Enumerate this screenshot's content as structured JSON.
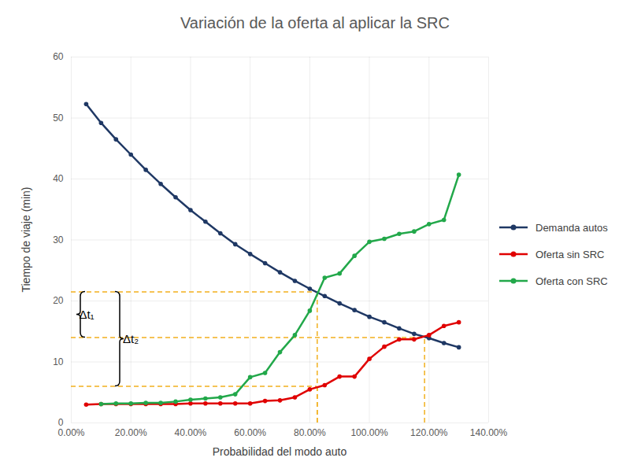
{
  "chart_data": {
    "type": "line",
    "title": "Variación de la oferta al aplicar la SRC",
    "x_label": "Probabilidad del modo auto",
    "y_label": "Tiempo de viaje (min)",
    "x": [
      5,
      10,
      15,
      20,
      25,
      30,
      35,
      40,
      45,
      50,
      55,
      60,
      65,
      70,
      75,
      80,
      85,
      90,
      95,
      100,
      105,
      110,
      115,
      120,
      125,
      130
    ],
    "series": [
      {
        "name": "Demanda autos",
        "color": "#1f3864",
        "marker": "circle",
        "values": [
          52.3,
          49.2,
          46.5,
          44.0,
          41.5,
          39.2,
          37.0,
          34.9,
          33.0,
          31.1,
          29.3,
          27.7,
          26.2,
          24.7,
          23.3,
          22.0,
          20.8,
          19.6,
          18.5,
          17.4,
          16.5,
          15.5,
          14.6,
          13.9,
          13.1,
          12.4
        ]
      },
      {
        "name": "Oferta sin SRC",
        "color": "#e00000",
        "marker": "circle",
        "values": [
          3.0,
          3.1,
          3.1,
          3.1,
          3.1,
          3.1,
          3.1,
          3.2,
          3.2,
          3.2,
          3.2,
          3.2,
          3.6,
          3.7,
          4.2,
          5.5,
          6.2,
          7.6,
          7.6,
          10.5,
          12.5,
          13.7,
          13.7,
          14.4,
          15.9,
          16.5
        ]
      },
      {
        "name": "Oferta con SRC",
        "color": "#22a84a",
        "marker": "circle",
        "values": [
          null,
          3.1,
          3.2,
          3.2,
          3.3,
          3.3,
          3.5,
          3.8,
          4.0,
          4.2,
          4.7,
          7.5,
          8.2,
          11.6,
          14.4,
          18.4,
          23.8,
          24.5,
          27.4,
          29.7,
          30.2,
          31.0,
          31.4,
          32.6,
          33.3,
          40.7
        ]
      }
    ],
    "xlim": [
      0,
      140
    ],
    "xticks": [
      {
        "value": 0,
        "label": "0.00%"
      },
      {
        "value": 20,
        "label": "20.00%"
      },
      {
        "value": 40,
        "label": "40.00%"
      },
      {
        "value": 60,
        "label": "60.00%"
      },
      {
        "value": 80,
        "label": "80.00%"
      },
      {
        "value": 100,
        "label": "100.00%"
      },
      {
        "value": 120,
        "label": "120.00%"
      },
      {
        "value": 140,
        "label": "140.00%"
      }
    ],
    "ylim": [
      0,
      60
    ],
    "yticks": [
      0,
      10,
      20,
      30,
      40,
      50,
      60
    ],
    "grid": true,
    "legend": "right",
    "reference_lines": {
      "color": "#f2b01e",
      "line_style": "dashed",
      "points": [
        {
          "x": 82.5,
          "y": 21.5
        },
        {
          "x": 118.5,
          "y": 14
        },
        {
          "x": 82.5,
          "y": 6
        }
      ]
    },
    "annotations": [
      {
        "label": "Δt₁",
        "y": [
          14,
          21.5
        ]
      },
      {
        "label": "Δt₂",
        "y": [
          6,
          21.5
        ]
      }
    ]
  }
}
